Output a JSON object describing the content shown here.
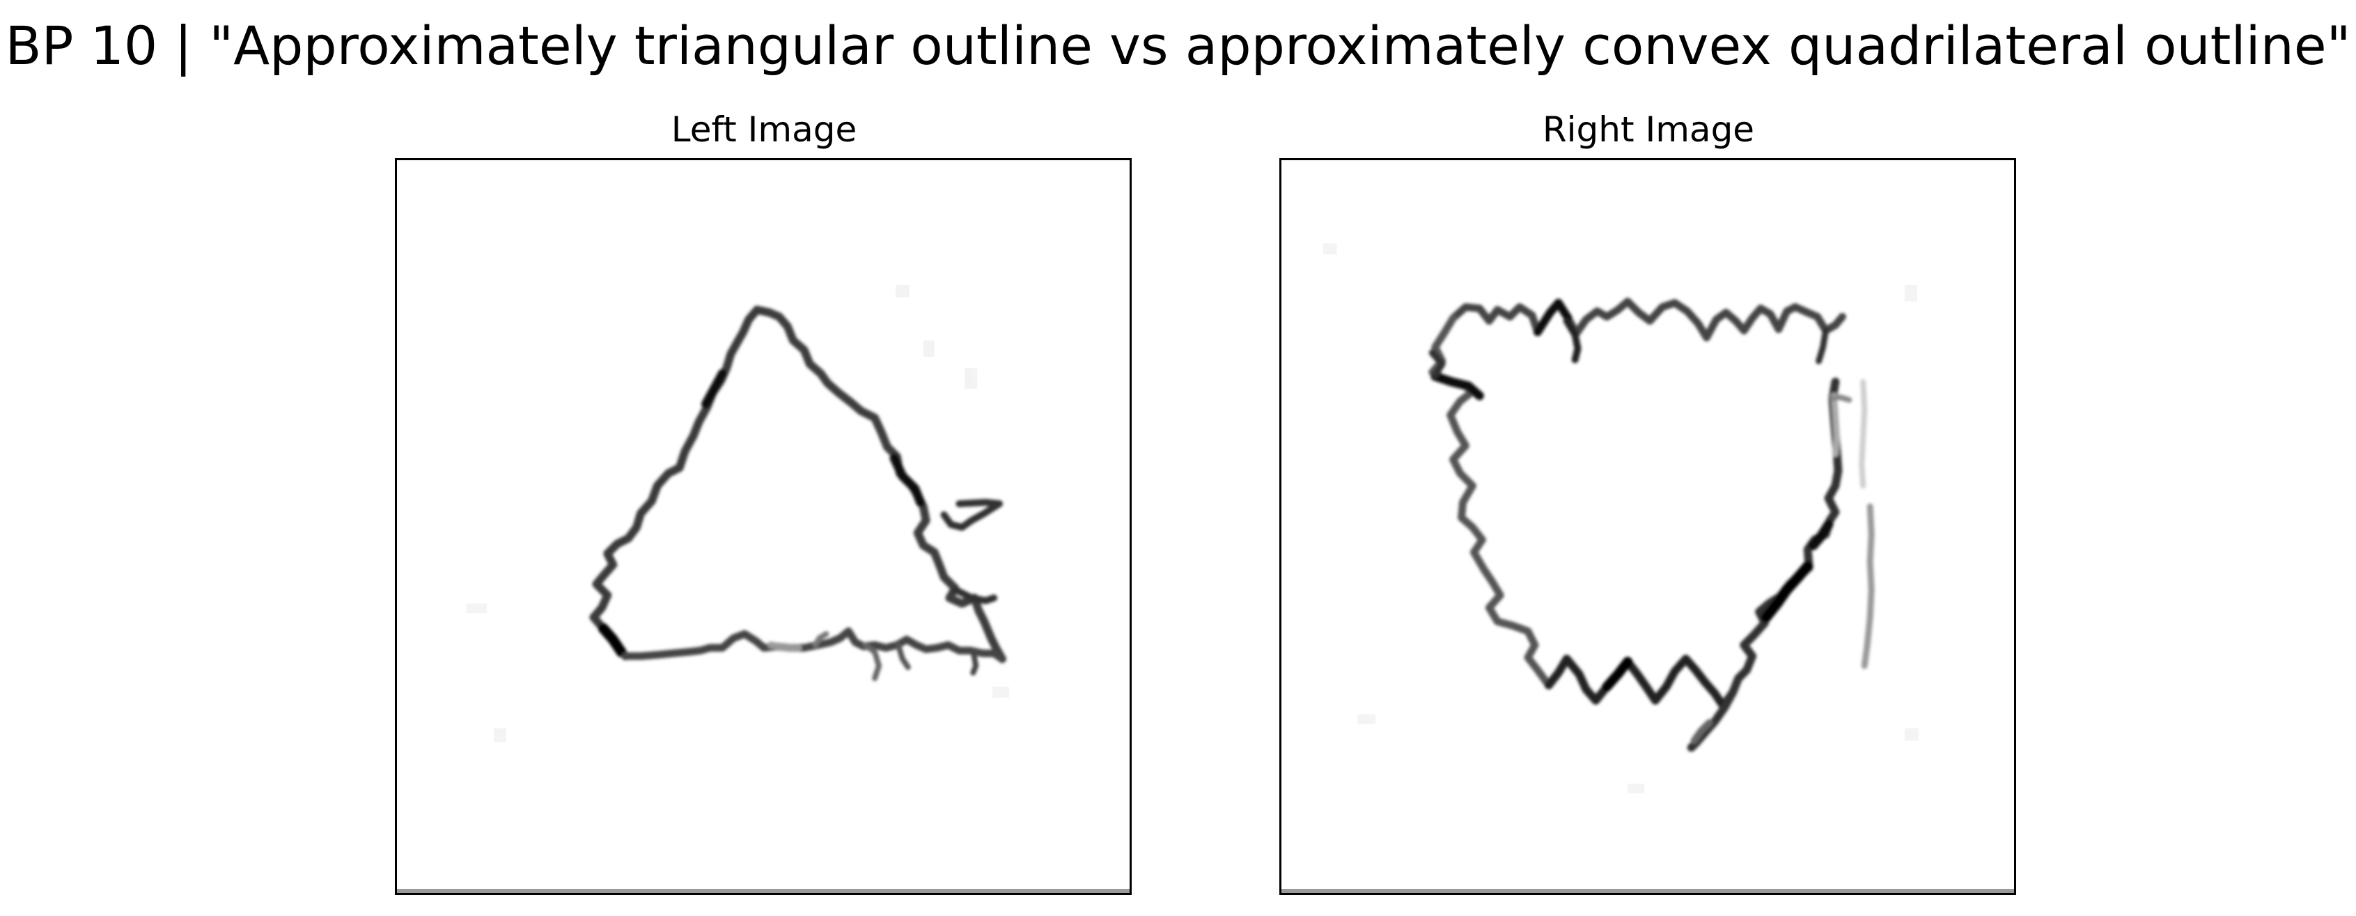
{
  "figure": {
    "title": "BP 10 | \"Approximately triangular outline vs approximately convex quadrilateral outline\""
  },
  "panels": {
    "left": {
      "title": "Left Image",
      "content": "triangular-outline"
    },
    "right": {
      "title": "Right Image",
      "content": "quadrilateral-outline"
    }
  },
  "colors": {
    "background": "#ffffff",
    "stroke_dark": "#111111",
    "stroke_mid": "#555555",
    "stroke_light": "#9a9a9a",
    "frame": "#000000"
  }
}
